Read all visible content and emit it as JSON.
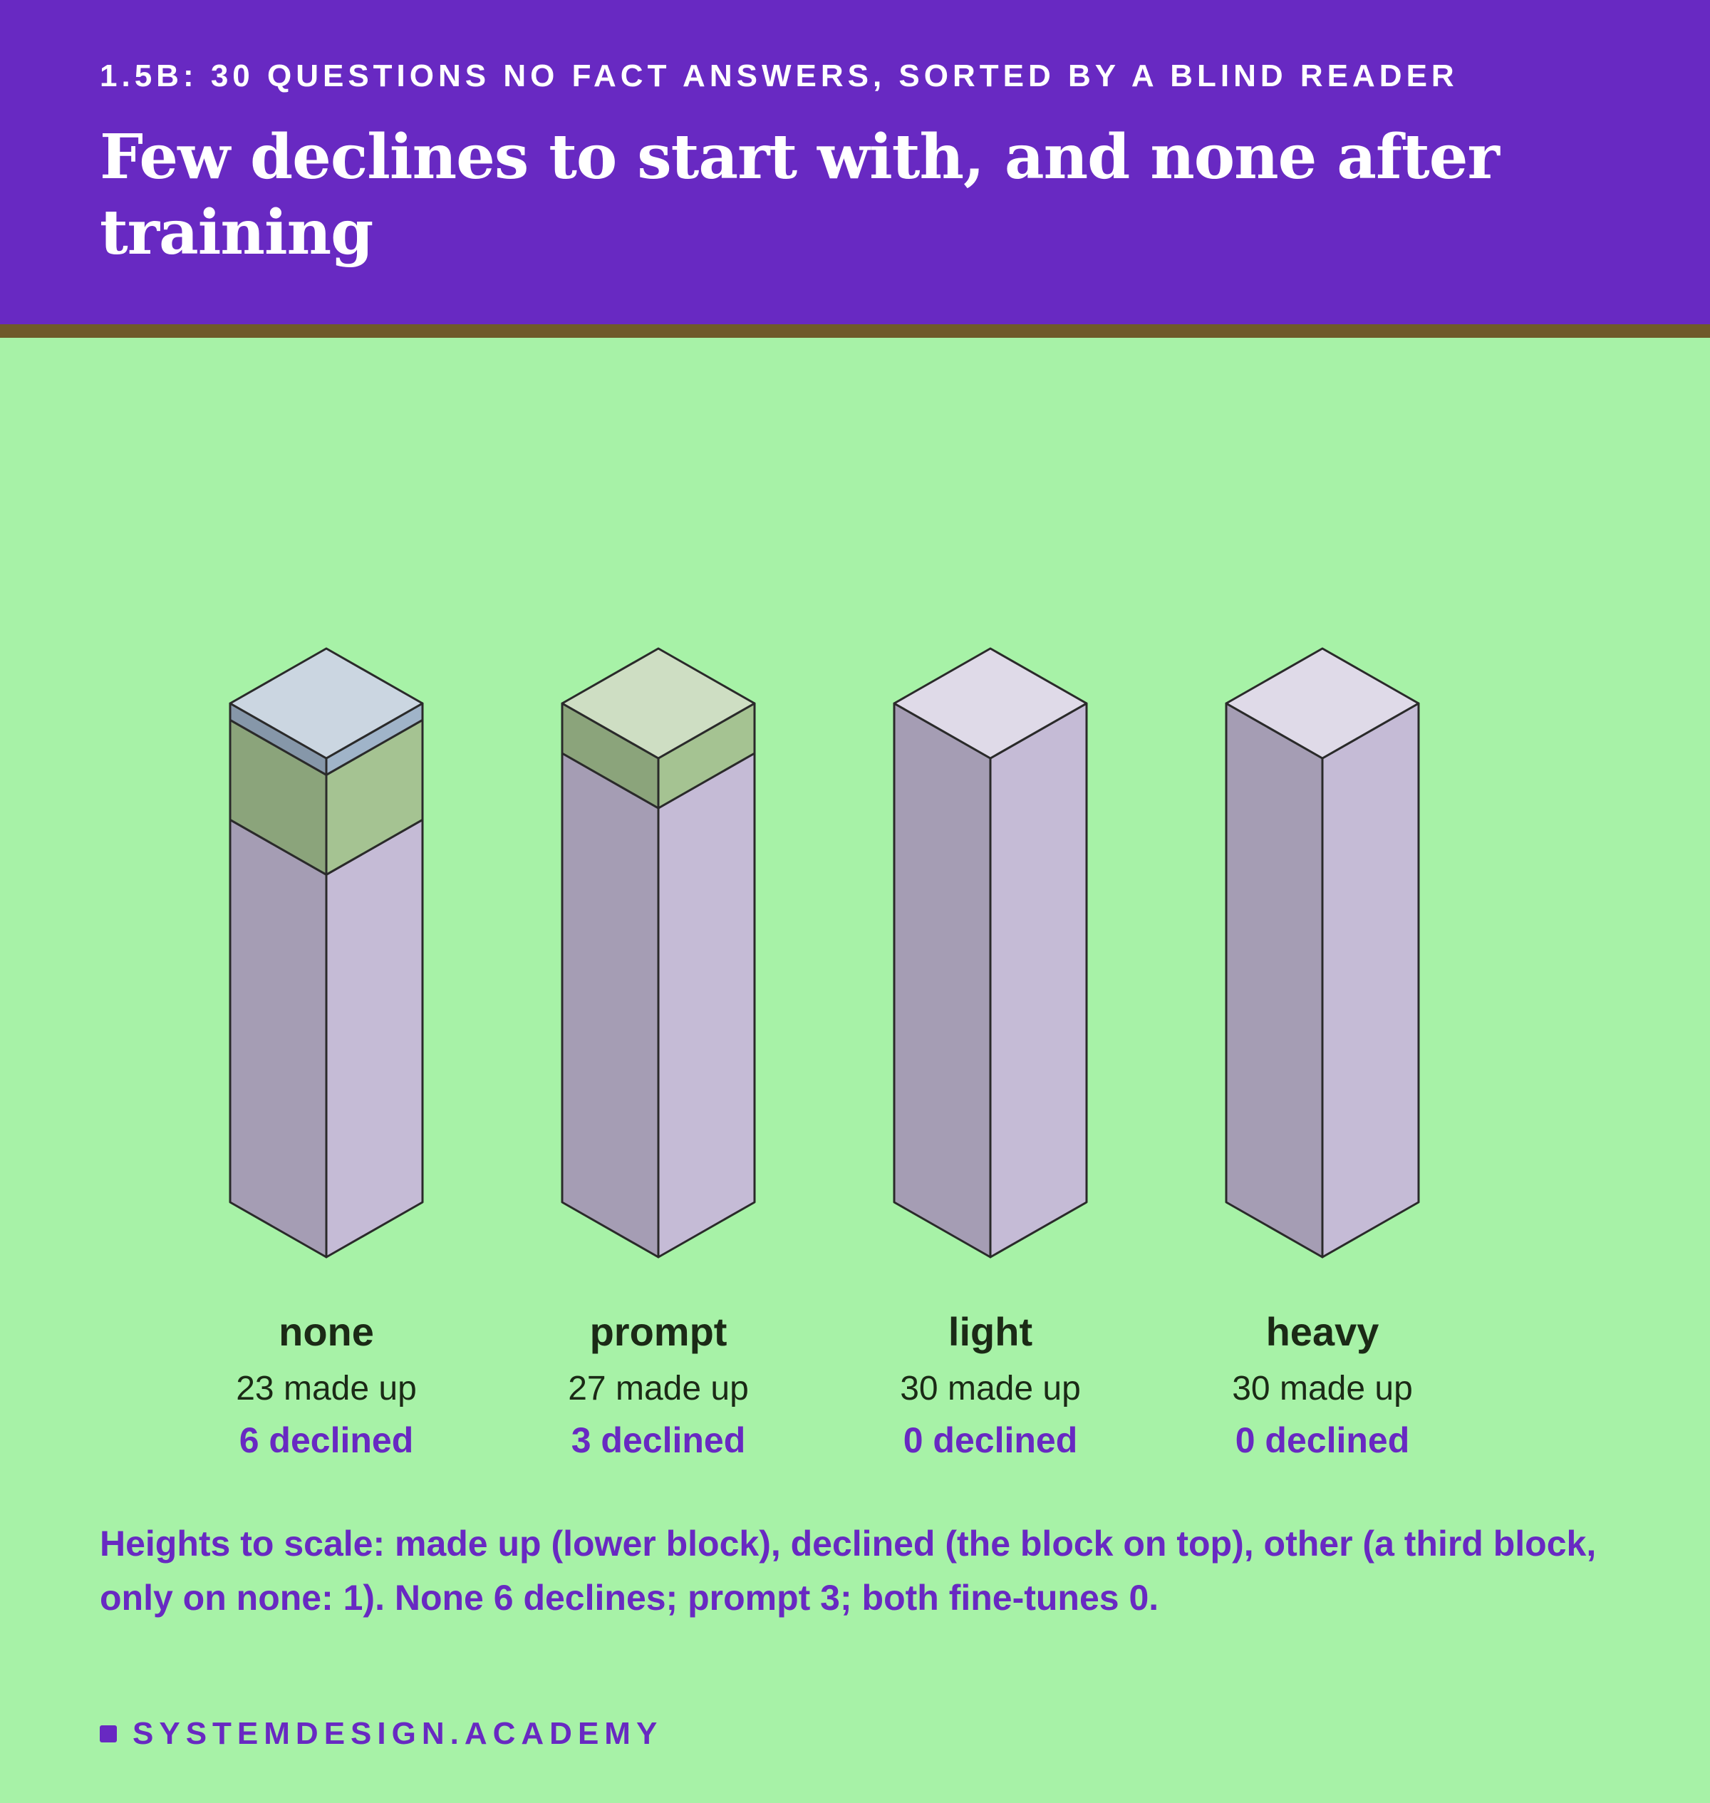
{
  "header": {
    "kicker": "1.5B: 30 QUESTIONS NO FACT ANSWERS, SORTED BY A BLIND READER",
    "title": "Few declines to start with, and none after training"
  },
  "chart_data": {
    "type": "bar",
    "stacked": true,
    "style": "isometric 3D blocks",
    "total": 30,
    "categories": [
      "none",
      "prompt",
      "light",
      "heavy"
    ],
    "series": [
      {
        "name": "made up",
        "values": [
          23,
          27,
          30,
          30
        ],
        "color": "#c5bbd6"
      },
      {
        "name": "declined",
        "values": [
          6,
          3,
          0,
          0
        ],
        "color": "#a5c392"
      },
      {
        "name": "other",
        "values": [
          1,
          0,
          0,
          0
        ],
        "color": "#a0b4c9"
      }
    ],
    "labels": [
      {
        "name": "none",
        "made_up": "23 made up",
        "declined": "6 declined"
      },
      {
        "name": "prompt",
        "made_up": "27 made up",
        "declined": "3 declined"
      },
      {
        "name": "light",
        "made_up": "30 made up",
        "declined": "0 declined"
      },
      {
        "name": "heavy",
        "made_up": "30 made up",
        "declined": "0 declined"
      }
    ]
  },
  "caption": "Heights to scale: made up (lower block), declined (the block on top), other (a third block, only on none: 1). None 6 declines; prompt 3; both fine-tunes 0.",
  "footer": {
    "brand": "SYSTEMDESIGN.ACADEMY"
  }
}
